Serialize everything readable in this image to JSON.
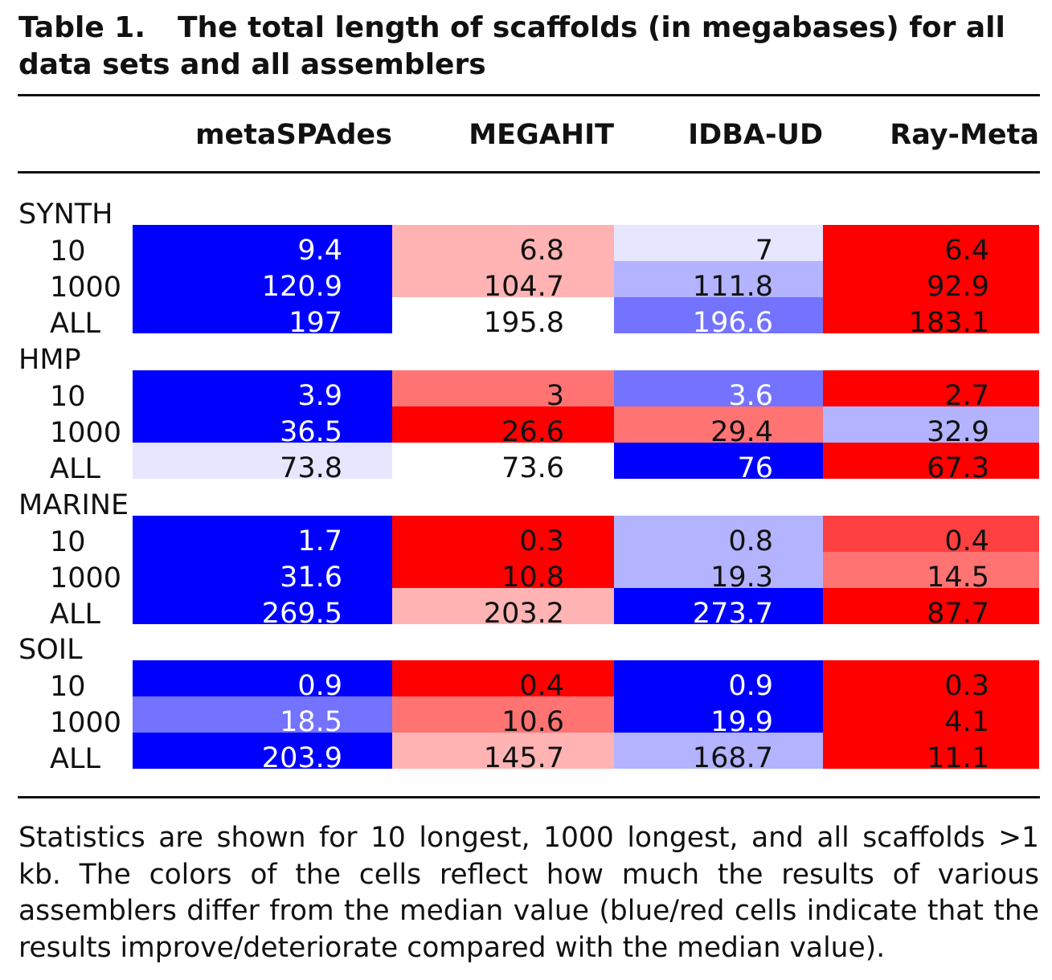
{
  "caption": {
    "label": "Table 1.",
    "text": "The total length of scaffolds (in megabases) for all data sets and all assemblers"
  },
  "columns": [
    "metaSPAdes",
    "MEGAHIT",
    "IDBA-UD",
    "Ray-Meta"
  ],
  "groups": [
    {
      "name": "SYNTH",
      "rows": [
        {
          "label": "10",
          "values": [
            "9.4",
            "6.8",
            "7",
            "6.4"
          ],
          "colors": [
            "#0000ff",
            "#ffb3b3",
            "#e6e6ff",
            "#ff0000"
          ]
        },
        {
          "label": "1000",
          "values": [
            "120.9",
            "104.7",
            "111.8",
            "92.9"
          ],
          "colors": [
            "#0000ff",
            "#ffb3b3",
            "#b3b3ff",
            "#ff0000"
          ]
        },
        {
          "label": "ALL",
          "values": [
            "197",
            "195.8",
            "196.6",
            "183.1"
          ],
          "colors": [
            "#0000ff",
            "#ffffff",
            "#7373ff",
            "#ff0000"
          ]
        }
      ]
    },
    {
      "name": "HMP",
      "rows": [
        {
          "label": "10",
          "values": [
            "3.9",
            "3",
            "3.6",
            "2.7"
          ],
          "colors": [
            "#0000ff",
            "#ff7373",
            "#7373ff",
            "#ff0000"
          ]
        },
        {
          "label": "1000",
          "values": [
            "36.5",
            "26.6",
            "29.4",
            "32.9"
          ],
          "colors": [
            "#0000ff",
            "#ff0000",
            "#ff7373",
            "#b3b3ff"
          ]
        },
        {
          "label": "ALL",
          "values": [
            "73.8",
            "73.6",
            "76",
            "67.3"
          ],
          "colors": [
            "#e6e6ff",
            "#ffffff",
            "#0000ff",
            "#ff0000"
          ]
        }
      ]
    },
    {
      "name": "MARINE",
      "rows": [
        {
          "label": "10",
          "values": [
            "1.7",
            "0.3",
            "0.8",
            "0.4"
          ],
          "colors": [
            "#0000ff",
            "#ff0000",
            "#b3b3ff",
            "#ff4040"
          ]
        },
        {
          "label": "1000",
          "values": [
            "31.6",
            "10.8",
            "19.3",
            "14.5"
          ],
          "colors": [
            "#0000ff",
            "#ff0000",
            "#b3b3ff",
            "#ff7373"
          ]
        },
        {
          "label": "ALL",
          "values": [
            "269.5",
            "203.2",
            "273.7",
            "87.7"
          ],
          "colors": [
            "#0000ff",
            "#ffb3b3",
            "#0000ff",
            "#ff0000"
          ]
        }
      ]
    },
    {
      "name": "SOIL",
      "rows": [
        {
          "label": "10",
          "values": [
            "0.9",
            "0.4",
            "0.9",
            "0.3"
          ],
          "colors": [
            "#0000ff",
            "#ff0000",
            "#0000ff",
            "#ff0000"
          ]
        },
        {
          "label": "1000",
          "values": [
            "18.5",
            "10.6",
            "19.9",
            "4.1"
          ],
          "colors": [
            "#7373ff",
            "#ff7373",
            "#0000ff",
            "#ff0000"
          ]
        },
        {
          "label": "ALL",
          "values": [
            "203.9",
            "145.7",
            "168.7",
            "11.1"
          ],
          "colors": [
            "#0000ff",
            "#ffb3b3",
            "#b3b3ff",
            "#ff0000"
          ]
        }
      ]
    }
  ],
  "footnote": "Statistics are shown for 10 longest, 1000 longest, and all scaffolds >1 kb. The colors of the cells reflect how much the results of various assemblers differ from the median value (blue/red cells indicate that the results improve/deteriorate compared with the median value)."
}
